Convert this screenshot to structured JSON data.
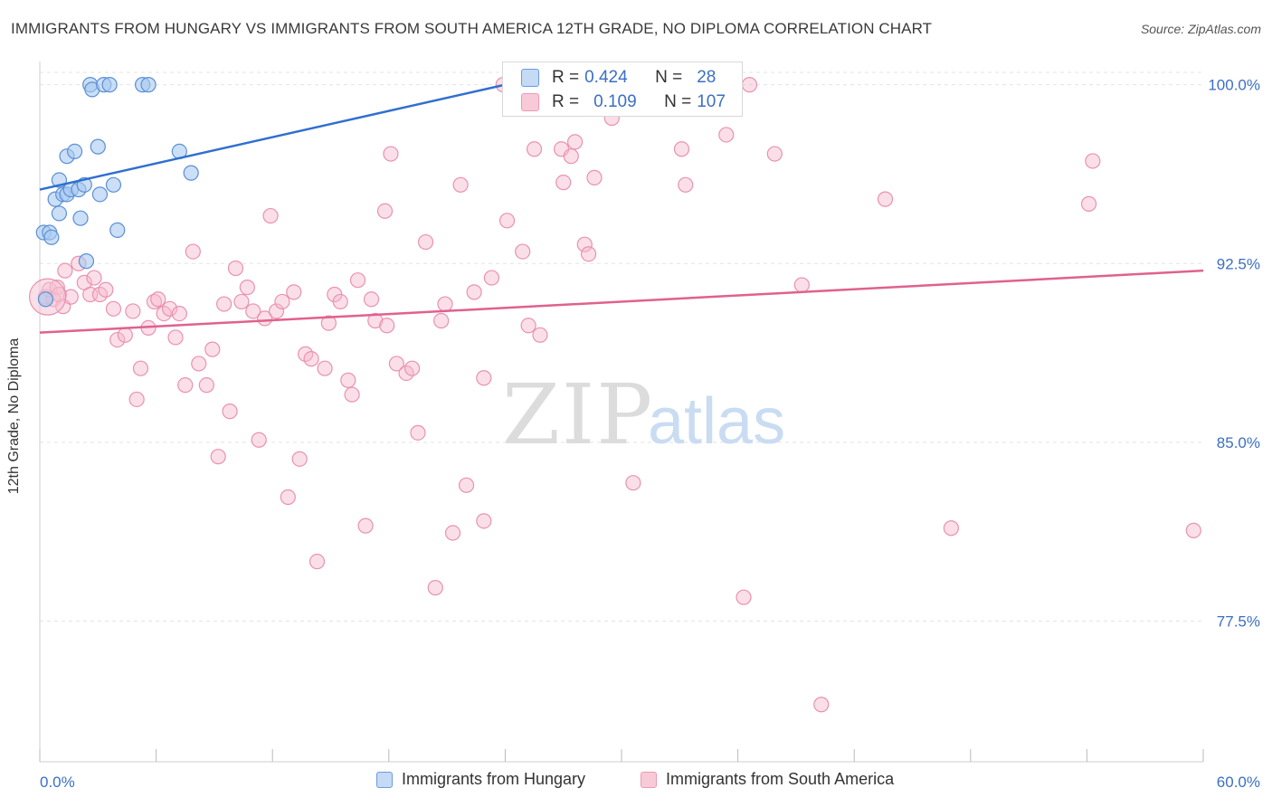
{
  "title": "IMMIGRANTS FROM HUNGARY VS IMMIGRANTS FROM SOUTH AMERICA 12TH GRADE, NO DIPLOMA CORRELATION CHART",
  "source": "Source: ZipAtlas.com",
  "watermark": {
    "zip": "ZIP",
    "atlas": "atlas"
  },
  "colors": {
    "hungary_fill": "#a9c9f0",
    "hungary_stroke": "#5b8fd6",
    "hungary_line": "#2f6fd0",
    "sa_fill": "#f6b9cc",
    "sa_stroke": "#e992ae",
    "sa_line": "#e0618e",
    "tick_label": "#3b6fc4",
    "grid": "#e3e3e3"
  },
  "stats": {
    "hungary": {
      "r_label": "R =",
      "r": "0.424",
      "n_label": "N =",
      "n": "28"
    },
    "south_america": {
      "r_label": "R =",
      "r": "0.109",
      "n_label": "N =",
      "n": "107"
    }
  },
  "legend": {
    "hungary": "Immigrants from Hungary",
    "south_america": "Immigrants from South America"
  },
  "chart_data": {
    "type": "scatter",
    "title": "IMMIGRANTS FROM HUNGARY VS IMMIGRANTS FROM SOUTH AMERICA 12TH GRADE, NO DIPLOMA CORRELATION CHART",
    "xlabel": "",
    "ylabel": "12th Grade, No Diploma",
    "xlim": [
      0,
      60
    ],
    "ylim": [
      71.6,
      101.2
    ],
    "x_tick_labels": [
      {
        "value": 0,
        "label": "0.0%"
      },
      {
        "value": 60,
        "label": "60.0%"
      }
    ],
    "y_ticks": [
      {
        "value": 100.0,
        "label": "100.0%"
      },
      {
        "value": 92.5,
        "label": "92.5%"
      },
      {
        "value": 85.0,
        "label": "85.0%"
      },
      {
        "value": 77.5,
        "label": "77.5%"
      }
    ],
    "x_minor_ticks": [
      0,
      6,
      12,
      18,
      24,
      30,
      36,
      42,
      48,
      54,
      60
    ],
    "grid": true,
    "legend_position": "bottom-center",
    "series": [
      {
        "name": "Immigrants from Hungary",
        "trend": {
          "x": [
            0,
            24.0
          ],
          "y": [
            95.6,
            100.0
          ]
        },
        "points": [
          [
            0.3,
            91.0
          ],
          [
            0.2,
            93.8
          ],
          [
            0.5,
            93.8
          ],
          [
            0.6,
            93.6
          ],
          [
            0.8,
            95.2
          ],
          [
            1.0,
            94.6
          ],
          [
            1.0,
            96.0
          ],
          [
            1.2,
            95.4
          ],
          [
            1.4,
            95.4
          ],
          [
            1.4,
            97.0
          ],
          [
            1.6,
            95.6
          ],
          [
            1.8,
            97.2
          ],
          [
            2.0,
            95.6
          ],
          [
            2.1,
            94.4
          ],
          [
            2.3,
            95.8
          ],
          [
            2.4,
            92.6
          ],
          [
            2.6,
            100.0
          ],
          [
            2.7,
            99.8
          ],
          [
            3.0,
            97.4
          ],
          [
            3.1,
            95.4
          ],
          [
            3.3,
            100.0
          ],
          [
            3.6,
            100.0
          ],
          [
            3.8,
            95.8
          ],
          [
            4.0,
            93.9
          ],
          [
            5.3,
            100.0
          ],
          [
            5.6,
            100.0
          ],
          [
            7.2,
            97.2
          ],
          [
            7.8,
            96.3
          ]
        ]
      },
      {
        "name": "Immigrants from South America",
        "trend": {
          "x": [
            0,
            60
          ],
          "y": [
            89.6,
            92.2
          ]
        },
        "points": [
          [
            0.3,
            91.1
          ],
          [
            0.5,
            91.4
          ],
          [
            0.7,
            91.0
          ],
          [
            0.9,
            91.5
          ],
          [
            1.0,
            91.2
          ],
          [
            1.2,
            90.7
          ],
          [
            1.3,
            92.2
          ],
          [
            1.6,
            91.1
          ],
          [
            2.0,
            92.5
          ],
          [
            2.3,
            91.7
          ],
          [
            2.6,
            91.2
          ],
          [
            2.8,
            91.9
          ],
          [
            3.1,
            91.2
          ],
          [
            3.4,
            91.4
          ],
          [
            3.8,
            90.6
          ],
          [
            4.0,
            89.3
          ],
          [
            4.4,
            89.5
          ],
          [
            4.8,
            90.5
          ],
          [
            5.0,
            86.8
          ],
          [
            5.2,
            88.1
          ],
          [
            5.6,
            89.8
          ],
          [
            5.9,
            90.9
          ],
          [
            6.1,
            91.0
          ],
          [
            6.4,
            90.4
          ],
          [
            6.7,
            90.6
          ],
          [
            7.0,
            89.4
          ],
          [
            7.2,
            90.4
          ],
          [
            7.5,
            87.4
          ],
          [
            7.9,
            93.0
          ],
          [
            8.2,
            88.3
          ],
          [
            8.6,
            87.4
          ],
          [
            8.9,
            88.9
          ],
          [
            9.2,
            84.4
          ],
          [
            9.5,
            90.8
          ],
          [
            9.8,
            86.3
          ],
          [
            10.1,
            92.3
          ],
          [
            10.4,
            90.9
          ],
          [
            10.7,
            91.5
          ],
          [
            11.0,
            90.5
          ],
          [
            11.3,
            85.1
          ],
          [
            11.6,
            90.2
          ],
          [
            11.9,
            94.5
          ],
          [
            12.2,
            90.5
          ],
          [
            12.5,
            90.9
          ],
          [
            12.8,
            82.7
          ],
          [
            13.1,
            91.3
          ],
          [
            13.4,
            84.3
          ],
          [
            13.7,
            88.7
          ],
          [
            14.0,
            88.5
          ],
          [
            14.3,
            80.0
          ],
          [
            14.7,
            88.1
          ],
          [
            14.9,
            90.0
          ],
          [
            15.2,
            91.2
          ],
          [
            15.5,
            90.9
          ],
          [
            15.9,
            87.6
          ],
          [
            16.1,
            87.0
          ],
          [
            16.4,
            91.8
          ],
          [
            16.8,
            81.5
          ],
          [
            17.1,
            91.0
          ],
          [
            17.3,
            90.1
          ],
          [
            17.8,
            94.7
          ],
          [
            17.9,
            89.9
          ],
          [
            18.1,
            97.1
          ],
          [
            18.4,
            88.3
          ],
          [
            18.9,
            87.9
          ],
          [
            19.2,
            88.1
          ],
          [
            19.5,
            85.4
          ],
          [
            19.9,
            93.4
          ],
          [
            20.4,
            78.9
          ],
          [
            20.7,
            90.1
          ],
          [
            20.9,
            90.8
          ],
          [
            21.3,
            81.2
          ],
          [
            21.7,
            95.8
          ],
          [
            22.0,
            83.2
          ],
          [
            22.4,
            91.3
          ],
          [
            22.9,
            81.7
          ],
          [
            22.9,
            87.7
          ],
          [
            23.3,
            91.9
          ],
          [
            23.9,
            100.0
          ],
          [
            24.1,
            94.3
          ],
          [
            24.9,
            93.0
          ],
          [
            25.2,
            89.9
          ],
          [
            25.5,
            97.3
          ],
          [
            25.8,
            89.5
          ],
          [
            26.9,
            97.3
          ],
          [
            27.0,
            95.9
          ],
          [
            27.4,
            97.0
          ],
          [
            27.6,
            97.6
          ],
          [
            28.1,
            93.3
          ],
          [
            28.3,
            92.9
          ],
          [
            28.6,
            96.1
          ],
          [
            29.5,
            98.6
          ],
          [
            30.6,
            83.3
          ],
          [
            32.2,
            99.0
          ],
          [
            32.8,
            99.2
          ],
          [
            33.1,
            97.3
          ],
          [
            33.3,
            95.8
          ],
          [
            33.8,
            99.9
          ],
          [
            35.4,
            97.9
          ],
          [
            36.6,
            100.0
          ],
          [
            36.3,
            78.5
          ],
          [
            37.9,
            97.1
          ],
          [
            39.3,
            91.6
          ],
          [
            40.3,
            74.0
          ],
          [
            43.6,
            95.2
          ],
          [
            47.0,
            81.4
          ],
          [
            54.1,
            95.0
          ],
          [
            54.3,
            96.8
          ],
          [
            59.5,
            81.3
          ]
        ]
      }
    ]
  }
}
